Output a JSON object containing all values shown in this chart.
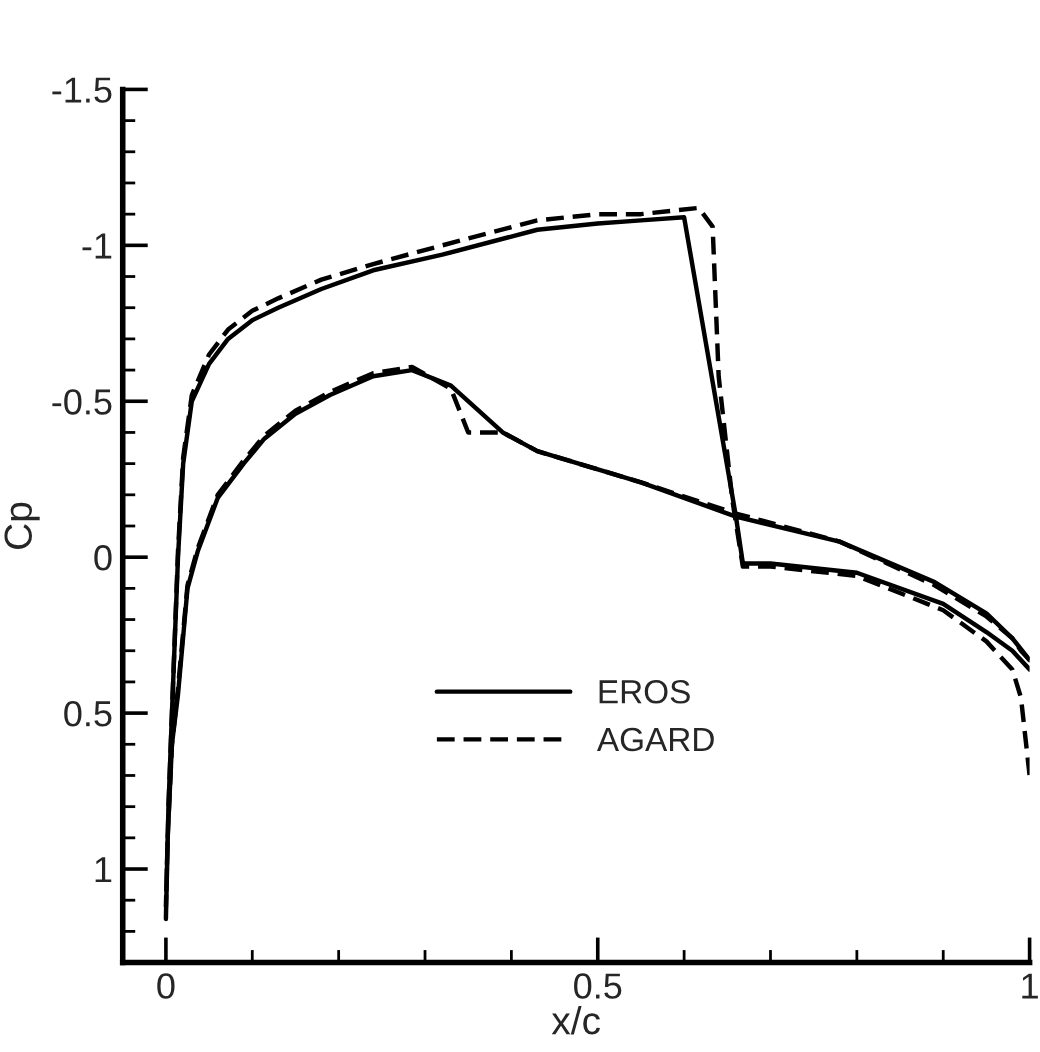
{
  "chart_data": {
    "type": "line",
    "xlabel": "x/c",
    "ylabel": "Cp",
    "xlim": [
      -0.05,
      1
    ],
    "ylim": [
      1.3,
      -1.5
    ],
    "xticks": [
      0,
      {
        "value": 0.1,
        "label": null
      },
      {
        "value": 0.2,
        "label": null
      },
      {
        "value": 0.3,
        "label": null
      },
      {
        "value": 0.4,
        "label": null
      },
      0.5,
      {
        "value": 0.6,
        "label": null
      },
      {
        "value": 0.7,
        "label": null
      },
      {
        "value": 0.8,
        "label": null
      },
      {
        "value": 0.9,
        "label": null
      },
      1
    ],
    "yticks": [
      -1.5,
      {
        "value": -1.4,
        "label": null
      },
      {
        "value": -1.3,
        "label": null
      },
      {
        "value": -1.2,
        "label": null
      },
      {
        "value": -1.1,
        "label": null
      },
      -1,
      {
        "value": -0.9,
        "label": null
      },
      {
        "value": -0.8,
        "label": null
      },
      {
        "value": -0.7,
        "label": null
      },
      {
        "value": -0.6,
        "label": null
      },
      -0.5,
      {
        "value": -0.4,
        "label": null
      },
      {
        "value": -0.3,
        "label": null
      },
      {
        "value": -0.2,
        "label": null
      },
      {
        "value": -0.1,
        "label": null
      },
      0,
      {
        "value": 0.1,
        "label": null
      },
      {
        "value": 0.2,
        "label": null
      },
      {
        "value": 0.3,
        "label": null
      },
      {
        "value": 0.4,
        "label": null
      },
      0.5,
      {
        "value": 0.6,
        "label": null
      },
      {
        "value": 0.7,
        "label": null
      },
      {
        "value": 0.8,
        "label": null
      },
      {
        "value": 0.9,
        "label": null
      },
      1,
      {
        "value": 1.1,
        "label": null
      },
      {
        "value": 1.2,
        "label": null
      }
    ],
    "grid": false,
    "legend": "bottom",
    "marker": "none",
    "series": [
      {
        "name": "EROS",
        "color": "#000000",
        "line_style": "solid",
        "x": [
          1.0,
          0.98,
          0.95,
          0.89,
          0.78,
          0.66,
          0.55,
          0.43,
          0.39,
          0.33,
          0.285,
          0.24,
          0.19,
          0.15,
          0.114,
          0.09,
          0.06,
          0.037,
          0.025,
          0.014,
          0.007,
          0.002,
          0,
          0.003,
          0.007,
          0.014,
          0.02,
          0.03,
          0.05,
          0.072,
          0.1,
          0.13,
          0.18,
          0.24,
          0.32,
          0.43,
          0.5,
          0.55,
          0.6,
          0.66,
          0.668,
          0.7,
          0.8,
          0.9,
          0.95,
          0.98,
          1.0
        ],
        "values": [
          0.33,
          0.26,
          0.18,
          0.08,
          -0.05,
          -0.13,
          -0.24,
          -0.34,
          -0.4,
          -0.55,
          -0.6,
          -0.58,
          -0.52,
          -0.46,
          -0.38,
          -0.3,
          -0.19,
          -0.02,
          0.1,
          0.44,
          0.6,
          0.9,
          1.16,
          0.8,
          0.5,
          0,
          -0.3,
          -0.5,
          -0.62,
          -0.7,
          -0.76,
          -0.8,
          -0.86,
          -0.92,
          -0.97,
          -1.05,
          -1.07,
          -1.08,
          -1.09,
          -0.13,
          0.02,
          0.02,
          0.05,
          0.15,
          0.24,
          0.3,
          0.36
        ]
      },
      {
        "name": "AGARD",
        "color": "#000000",
        "line_style": "dashed",
        "x": [
          1.0,
          0.99,
          0.98,
          0.95,
          0.89,
          0.78,
          0.66,
          0.55,
          0.43,
          0.39,
          0.35,
          0.33,
          0.285,
          0.24,
          0.19,
          0.15,
          0.114,
          0.09,
          0.06,
          0.037,
          0.025,
          0.014,
          0.007,
          0.002,
          0,
          0.003,
          0.007,
          0.014,
          0.02,
          0.03,
          0.05,
          0.072,
          0.1,
          0.13,
          0.18,
          0.24,
          0.32,
          0.43,
          0.5,
          0.55,
          0.617,
          0.633,
          0.64,
          0.656,
          0.668,
          0.7,
          0.8,
          0.9,
          0.95,
          0.98,
          0.99,
          1.0
        ],
        "values": [
          0.33,
          0.3,
          0.26,
          0.19,
          0.09,
          -0.05,
          -0.14,
          -0.24,
          -0.34,
          -0.4,
          -0.4,
          -0.54,
          -0.61,
          -0.59,
          -0.53,
          -0.47,
          -0.39,
          -0.31,
          -0.2,
          -0.03,
          0.09,
          0.42,
          0.6,
          0.9,
          1.12,
          0.8,
          0.5,
          -0.02,
          -0.32,
          -0.52,
          -0.65,
          -0.73,
          -0.79,
          -0.83,
          -0.89,
          -0.94,
          -1.0,
          -1.08,
          -1.1,
          -1.1,
          -1.12,
          -1.06,
          -0.58,
          -0.18,
          0.03,
          0.03,
          0.06,
          0.17,
          0.27,
          0.36,
          0.45,
          0.7
        ]
      }
    ]
  }
}
